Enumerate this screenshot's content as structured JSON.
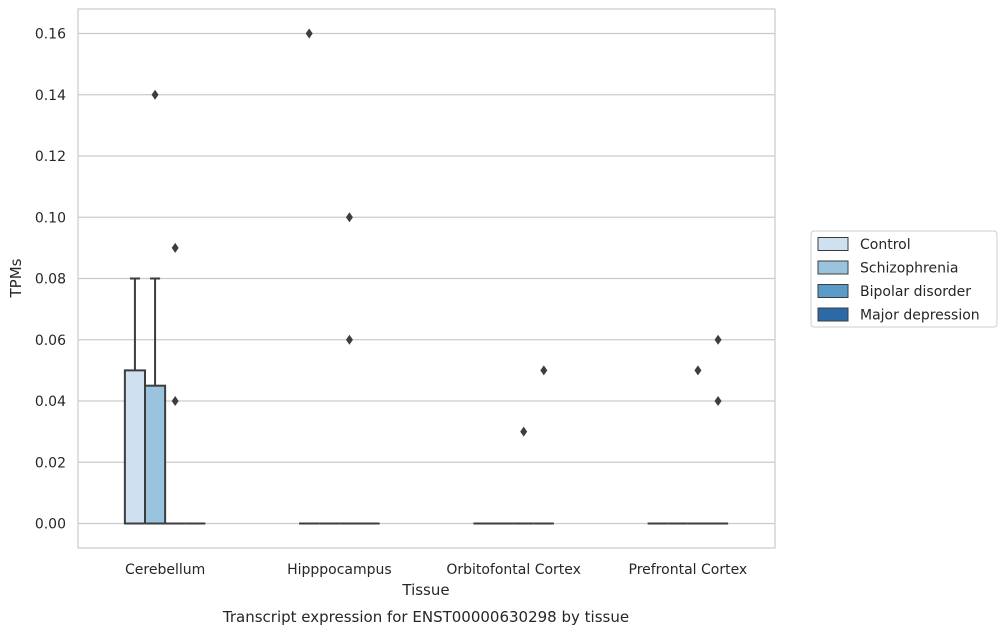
{
  "chart_data": {
    "type": "box",
    "title": "",
    "caption": "Transcript expression for ENST00000630298 by tissue",
    "xlabel": "Tissue",
    "ylabel": "TPMs",
    "ylim": [
      -0.008,
      0.168
    ],
    "yticks": [
      "0.00",
      "0.02",
      "0.04",
      "0.06",
      "0.08",
      "0.10",
      "0.12",
      "0.14",
      "0.16"
    ],
    "grid": "horizontal",
    "legend_position": "right",
    "categories": [
      "Cerebellum",
      "Hipppocampus",
      "Orbitofontal Cortex",
      "Prefrontal Cortex"
    ],
    "series": [
      {
        "name": "Control",
        "color": "#cfe1f1",
        "boxes": [
          {
            "q1": 0.0,
            "median": 0.0,
            "q3": 0.05,
            "whislo": 0.0,
            "whishi": 0.08,
            "fliers": []
          },
          {
            "q1": 0.0,
            "median": 0.0,
            "q3": 0.0,
            "whislo": 0.0,
            "whishi": 0.0,
            "fliers": [
              0.16
            ]
          },
          {
            "q1": 0.0,
            "median": 0.0,
            "q3": 0.0,
            "whislo": 0.0,
            "whishi": 0.0,
            "fliers": []
          },
          {
            "q1": 0.0,
            "median": 0.0,
            "q3": 0.0,
            "whislo": 0.0,
            "whishi": 0.0,
            "fliers": []
          }
        ]
      },
      {
        "name": "Schizophrenia",
        "color": "#9ac3dd",
        "boxes": [
          {
            "q1": 0.0,
            "median": 0.0,
            "q3": 0.045,
            "whislo": 0.0,
            "whishi": 0.08,
            "fliers": [
              0.14
            ]
          },
          {
            "q1": 0.0,
            "median": 0.0,
            "q3": 0.0,
            "whislo": 0.0,
            "whishi": 0.0,
            "fliers": []
          },
          {
            "q1": 0.0,
            "median": 0.0,
            "q3": 0.0,
            "whislo": 0.0,
            "whishi": 0.0,
            "fliers": []
          },
          {
            "q1": 0.0,
            "median": 0.0,
            "q3": 0.0,
            "whislo": 0.0,
            "whishi": 0.0,
            "fliers": []
          }
        ]
      },
      {
        "name": "Bipolar disorder",
        "color": "#5a9ac9",
        "boxes": [
          {
            "q1": 0.0,
            "median": 0.0,
            "q3": 0.0,
            "whislo": 0.0,
            "whishi": 0.0,
            "fliers": [
              0.09,
              0.04
            ]
          },
          {
            "q1": 0.0,
            "median": 0.0,
            "q3": 0.0,
            "whislo": 0.0,
            "whishi": 0.0,
            "fliers": [
              0.1,
              0.06
            ]
          },
          {
            "q1": 0.0,
            "median": 0.0,
            "q3": 0.0,
            "whislo": 0.0,
            "whishi": 0.0,
            "fliers": [
              0.03
            ]
          },
          {
            "q1": 0.0,
            "median": 0.0,
            "q3": 0.0,
            "whislo": 0.0,
            "whishi": 0.0,
            "fliers": [
              0.05
            ]
          }
        ]
      },
      {
        "name": "Major depression",
        "color": "#2b6aa6",
        "boxes": [
          {
            "q1": 0.0,
            "median": 0.0,
            "q3": 0.0,
            "whislo": 0.0,
            "whishi": 0.0,
            "fliers": []
          },
          {
            "q1": 0.0,
            "median": 0.0,
            "q3": 0.0,
            "whislo": 0.0,
            "whishi": 0.0,
            "fliers": []
          },
          {
            "q1": 0.0,
            "median": 0.0,
            "q3": 0.0,
            "whislo": 0.0,
            "whishi": 0.0,
            "fliers": [
              0.05
            ]
          },
          {
            "q1": 0.0,
            "median": 0.0,
            "q3": 0.0,
            "whislo": 0.0,
            "whishi": 0.0,
            "fliers": [
              0.06,
              0.04
            ]
          }
        ]
      }
    ]
  }
}
